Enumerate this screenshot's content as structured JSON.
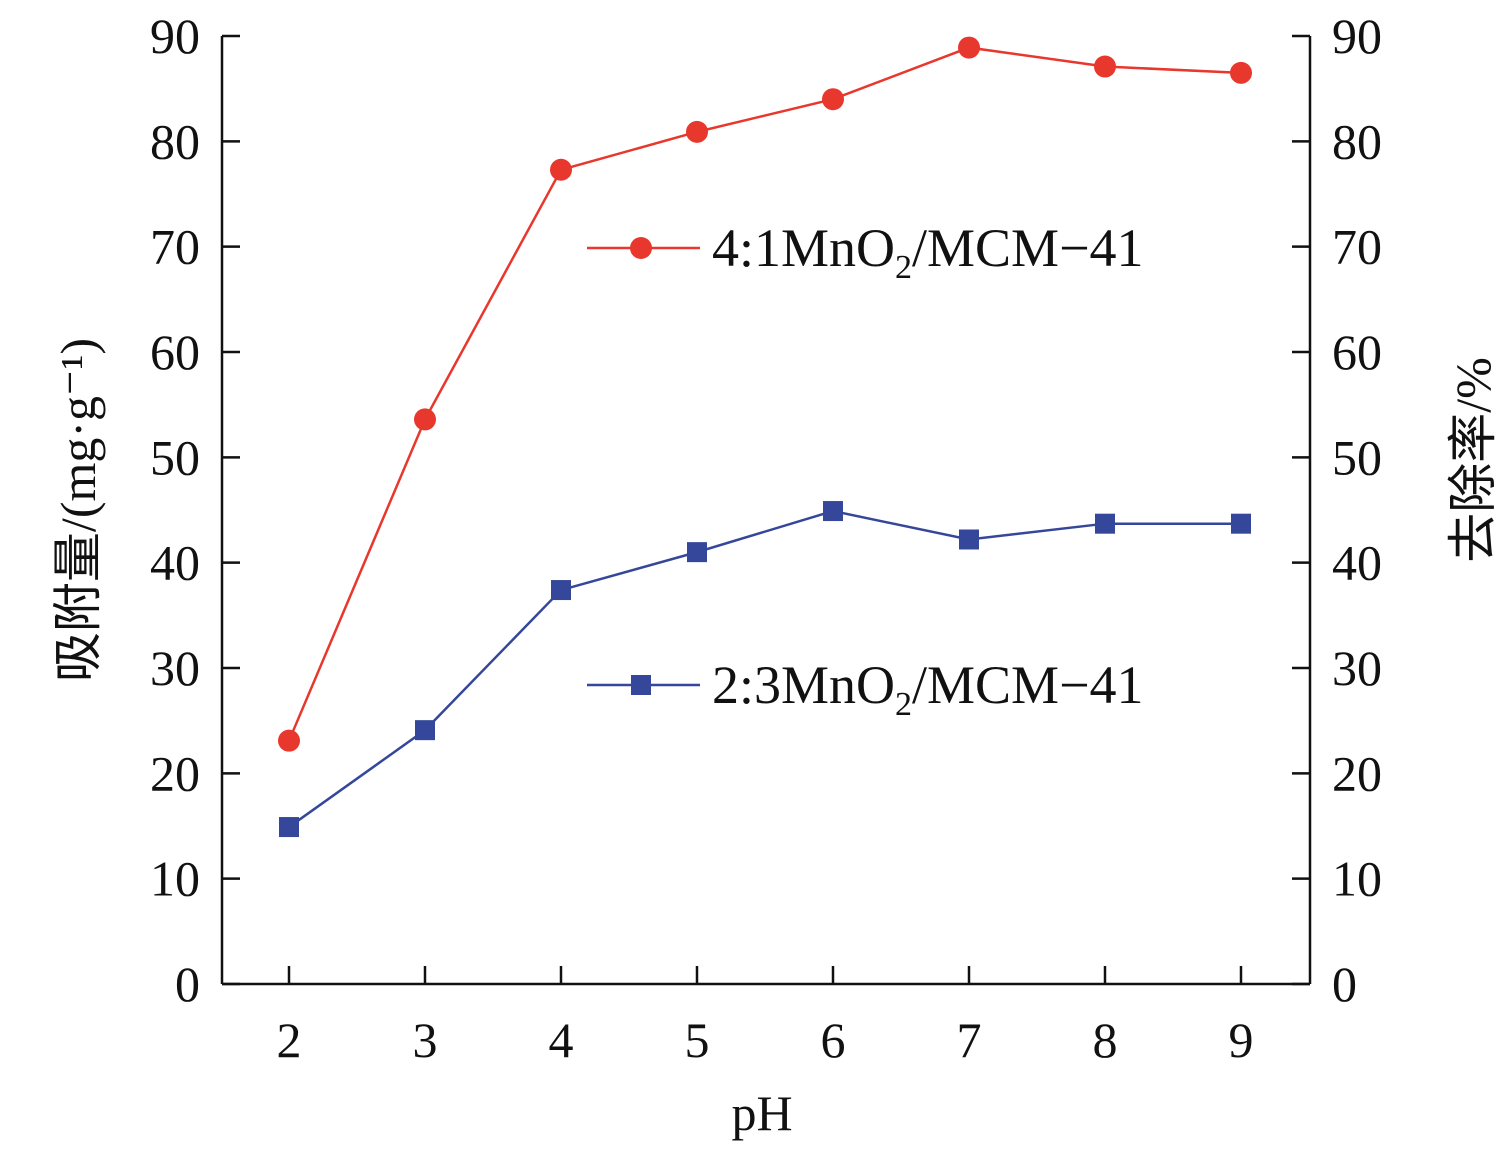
{
  "chart_data": {
    "type": "line",
    "title": "",
    "xlabel": "pH",
    "ylabel": "吸附量/(mg·g⁻¹)",
    "ylabel_right": "去除率/%",
    "x": [
      2,
      3,
      4,
      5,
      6,
      7,
      8,
      9
    ],
    "x_ticks": [
      "2",
      "3",
      "4",
      "5",
      "6",
      "7",
      "8",
      "9"
    ],
    "ylim": [
      0,
      90
    ],
    "y_ticks": [
      "0",
      "10",
      "20",
      "30",
      "40",
      "50",
      "60",
      "70",
      "80",
      "90"
    ],
    "ylim_right": [
      0,
      90
    ],
    "y_ticks_right": [
      "0",
      "10",
      "20",
      "30",
      "40",
      "50",
      "60",
      "70",
      "80",
      "90"
    ],
    "grid": false,
    "legend_placement": "center-right",
    "series": [
      {
        "name": "4:1MnO2/MCM-41",
        "legend_main": "4:1MnO",
        "legend_sub": "2",
        "legend_tail": "/MCM−41",
        "color": "#e8372c",
        "marker": "circle",
        "values": [
          23.1,
          53.6,
          77.3,
          80.9,
          84.0,
          88.9,
          87.1,
          86.5
        ]
      },
      {
        "name": "2:3MnO2/MCM-41",
        "legend_main": "2:3MnO",
        "legend_sub": "2",
        "legend_tail": "/MCM−41",
        "color": "#35479a",
        "marker": "square",
        "values": [
          14.9,
          24.1,
          37.4,
          41.0,
          44.9,
          42.2,
          43.7,
          43.7
        ]
      }
    ]
  }
}
